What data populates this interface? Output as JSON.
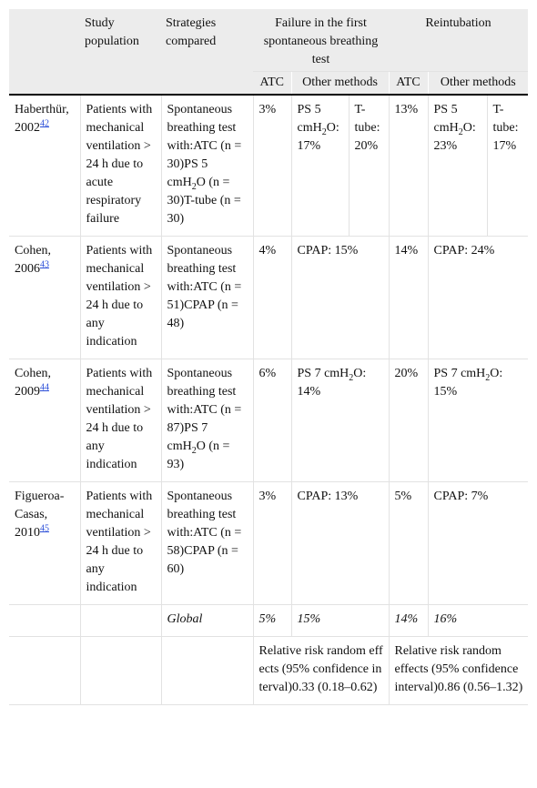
{
  "header": {
    "study": "Study population",
    "strategies": "Strategies compared",
    "failure": "Failure in the first spontaneous breathing test",
    "reintubation": "Reintubation",
    "atc1": "ATC",
    "other1": "Other methods",
    "atc2": "ATC",
    "other2": "Other methods"
  },
  "rows": [
    {
      "author": [
        "Haberthür, 2002",
        "42"
      ],
      "population": "Patients with mechanical ventilation > 24 h due to acute respiratory failure",
      "strategies": [
        "Spontaneous breathing test with:ATC (n = 30)PS 5 cmH",
        "2",
        "O (n = 30)T-tube (n = 30)"
      ],
      "fail_atc": "3%",
      "fail_other": [
        "PS 5 cmH",
        "2",
        "O: 17%"
      ],
      "fail_other2": "T-tube: 20%",
      "re_atc": "13%",
      "re_other": [
        "PS 5 cmH",
        "2",
        "O: 23%"
      ],
      "re_other2": "T-tube: 17%"
    },
    {
      "author": [
        "Cohen, 2006",
        "43"
      ],
      "population": "Patients with mechanical ventilation > 24 h due to any indication",
      "strategies": "Spontaneous breathing test with:ATC (n = 51)CPAP (n = 48)",
      "fail_atc": "4%",
      "fail_other": "CPAP: 15%",
      "re_atc": "14%",
      "re_other": "CPAP: 24%"
    },
    {
      "author": [
        "Cohen, 2009",
        "44"
      ],
      "population": "Patients with mechanical ventilation > 24 h due to any indication",
      "strategies": [
        "Spontaneous breathing test with:ATC (n = 87)PS 7 cmH",
        "2",
        "O (n = 93)"
      ],
      "fail_atc": "6%",
      "fail_other": [
        "PS 7 cmH",
        "2",
        "O: 14%"
      ],
      "re_atc": "20%",
      "re_other": [
        "PS 7 cmH",
        "2",
        "O: 15%"
      ]
    },
    {
      "author": [
        "Figueroa-Casas, 2010",
        "45"
      ],
      "population": "Patients with mechanical ventilation > 24 h due to any indication",
      "strategies": "Spontaneous breathing test with:ATC (n = 58)CPAP (n = 60)",
      "fail_atc": "3%",
      "fail_other": "CPAP: 13%",
      "re_atc": "5%",
      "re_other": "CPAP: 7%"
    }
  ],
  "global": {
    "label": "Global",
    "fail_atc": "5%",
    "fail_other": "15%",
    "re_atc": "14%",
    "re_other": "16%"
  },
  "relative_risk": {
    "failure": "Relative risk random effects (95% confidence interval)0.33 (0.18–0.62)",
    "reintubation": "Relative risk random effects (95% confidence interval)0.86 (0.56–1.32)"
  }
}
